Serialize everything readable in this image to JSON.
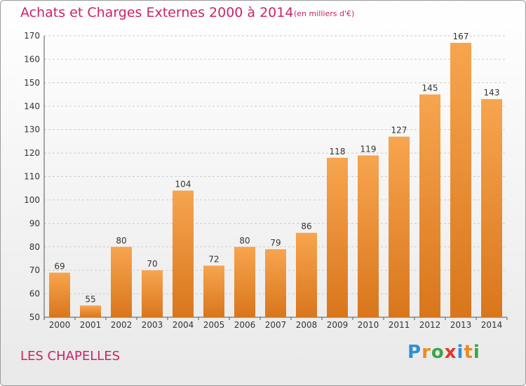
{
  "header": {
    "title": "Achats et Charges Externes 2000 à 2014",
    "subtitle": "(en milliers d'€)"
  },
  "footer": {
    "place": "LES CHAPELLES",
    "logo": {
      "letters": [
        "P",
        "r",
        "o",
        "x",
        "i",
        "t",
        "i"
      ],
      "colors": [
        "#2f8fd6",
        "#f08a1c",
        "#3aa64a",
        "#e8342a",
        "#2f8fd6",
        "#f08a1c",
        "#3aa64a"
      ]
    }
  },
  "colors": {
    "bar_light": "#f7a54f",
    "bar_dark": "#d9761c",
    "grid": "#cccccc",
    "text_accent": "#cc2266"
  },
  "chart_data": {
    "type": "bar",
    "categories": [
      "2000",
      "2001",
      "2002",
      "2003",
      "2004",
      "2005",
      "2006",
      "2007",
      "2008",
      "2009",
      "2010",
      "2011",
      "2012",
      "2013",
      "2014"
    ],
    "values": [
      69,
      55,
      80,
      70,
      104,
      72,
      80,
      79,
      86,
      118,
      119,
      127,
      145,
      167,
      143
    ],
    "ylim": [
      50,
      170
    ],
    "yticks": [
      50,
      60,
      70,
      80,
      90,
      100,
      110,
      120,
      130,
      140,
      150,
      160,
      170
    ],
    "grid": true,
    "title": "Achats et Charges Externes 2000 à 2014",
    "xlabel": "",
    "ylabel": ""
  }
}
